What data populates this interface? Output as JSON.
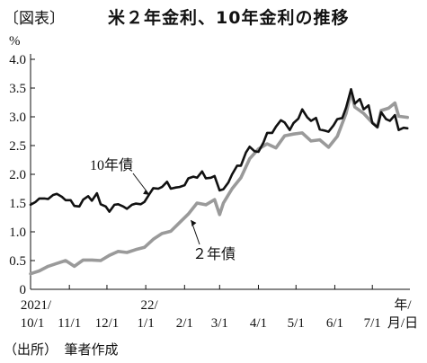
{
  "header": {
    "figure_label": "〔図表〕",
    "title": "米２年金利、10年金利の推移"
  },
  "footer": {
    "source": "（出所）　筆者作成"
  },
  "chart_data": {
    "type": "line",
    "title": "米２年金利、10年金利の推移",
    "ylabel": "%",
    "xlabel": "",
    "ylim": [
      0,
      4.0
    ],
    "yticks": [
      0,
      0.5,
      1.0,
      1.5,
      2.0,
      2.5,
      3.0,
      3.5,
      4.0
    ],
    "ytick_labels": [
      "0",
      "0.5",
      "1.0",
      "1.5",
      "2.0",
      "2.5",
      "3.0",
      "3.5",
      "4.0"
    ],
    "xlim": [
      "2021-10-01",
      "2022-07-31"
    ],
    "xticks": [
      {
        "date": "2021-10-01",
        "label": "10/1",
        "year_label": "2021/"
      },
      {
        "date": "2021-11-01",
        "label": "11/1",
        "year_label": ""
      },
      {
        "date": "2021-12-01",
        "label": "12/1",
        "year_label": ""
      },
      {
        "date": "2022-01-01",
        "label": "1/1",
        "year_label": "22/"
      },
      {
        "date": "2022-02-01",
        "label": "2/1",
        "year_label": ""
      },
      {
        "date": "2022-03-01",
        "label": "3/1",
        "year_label": ""
      },
      {
        "date": "2022-04-01",
        "label": "4/1",
        "year_label": ""
      },
      {
        "date": "2022-05-01",
        "label": "5/1",
        "year_label": ""
      },
      {
        "date": "2022-06-01",
        "label": "6/1",
        "year_label": ""
      },
      {
        "date": "2022-07-01",
        "label": "7/1",
        "year_label": ""
      }
    ],
    "x_unit_top": "年/",
    "x_unit_bottom": "月/日",
    "grid": false,
    "legend": "inline labels with arrows",
    "series": [
      {
        "name": "10年債",
        "color": "#111111",
        "points": [
          [
            "2021-10-01",
            1.47
          ],
          [
            "2021-10-05",
            1.52
          ],
          [
            "2021-10-08",
            1.58
          ],
          [
            "2021-10-12",
            1.58
          ],
          [
            "2021-10-15",
            1.57
          ],
          [
            "2021-10-19",
            1.64
          ],
          [
            "2021-10-22",
            1.66
          ],
          [
            "2021-10-26",
            1.61
          ],
          [
            "2021-10-29",
            1.55
          ],
          [
            "2021-11-02",
            1.55
          ],
          [
            "2021-11-05",
            1.45
          ],
          [
            "2021-11-09",
            1.44
          ],
          [
            "2021-11-12",
            1.56
          ],
          [
            "2021-11-16",
            1.62
          ],
          [
            "2021-11-19",
            1.54
          ],
          [
            "2021-11-23",
            1.67
          ],
          [
            "2021-11-26",
            1.48
          ],
          [
            "2021-11-30",
            1.44
          ],
          [
            "2021-12-03",
            1.35
          ],
          [
            "2021-12-07",
            1.47
          ],
          [
            "2021-12-10",
            1.48
          ],
          [
            "2021-12-14",
            1.44
          ],
          [
            "2021-12-17",
            1.4
          ],
          [
            "2021-12-21",
            1.47
          ],
          [
            "2021-12-24",
            1.49
          ],
          [
            "2021-12-28",
            1.48
          ],
          [
            "2021-12-31",
            1.52
          ],
          [
            "2022-01-04",
            1.66
          ],
          [
            "2022-01-07",
            1.76
          ],
          [
            "2022-01-11",
            1.75
          ],
          [
            "2022-01-14",
            1.78
          ],
          [
            "2022-01-18",
            1.87
          ],
          [
            "2022-01-21",
            1.75
          ],
          [
            "2022-01-25",
            1.77
          ],
          [
            "2022-01-28",
            1.78
          ],
          [
            "2022-02-01",
            1.81
          ],
          [
            "2022-02-04",
            1.93
          ],
          [
            "2022-02-08",
            1.96
          ],
          [
            "2022-02-11",
            1.94
          ],
          [
            "2022-02-15",
            2.05
          ],
          [
            "2022-02-18",
            1.93
          ],
          [
            "2022-02-22",
            1.94
          ],
          [
            "2022-02-25",
            1.97
          ],
          [
            "2022-03-01",
            1.72
          ],
          [
            "2022-03-04",
            1.74
          ],
          [
            "2022-03-08",
            1.86
          ],
          [
            "2022-03-11",
            2.0
          ],
          [
            "2022-03-15",
            2.15
          ],
          [
            "2022-03-18",
            2.15
          ],
          [
            "2022-03-22",
            2.38
          ],
          [
            "2022-03-25",
            2.48
          ],
          [
            "2022-03-29",
            2.4
          ],
          [
            "2022-04-01",
            2.39
          ],
          [
            "2022-04-05",
            2.55
          ],
          [
            "2022-04-08",
            2.72
          ],
          [
            "2022-04-12",
            2.72
          ],
          [
            "2022-04-15",
            2.83
          ],
          [
            "2022-04-19",
            2.94
          ],
          [
            "2022-04-22",
            2.9
          ],
          [
            "2022-04-26",
            2.77
          ],
          [
            "2022-04-29",
            2.89
          ],
          [
            "2022-05-03",
            2.97
          ],
          [
            "2022-05-06",
            3.13
          ],
          [
            "2022-05-10",
            2.99
          ],
          [
            "2022-05-13",
            2.93
          ],
          [
            "2022-05-17",
            2.98
          ],
          [
            "2022-05-20",
            2.78
          ],
          [
            "2022-05-24",
            2.76
          ],
          [
            "2022-05-27",
            2.74
          ],
          [
            "2022-05-31",
            2.85
          ],
          [
            "2022-06-03",
            2.96
          ],
          [
            "2022-06-07",
            2.98
          ],
          [
            "2022-06-10",
            3.16
          ],
          [
            "2022-06-14",
            3.48
          ],
          [
            "2022-06-17",
            3.23
          ],
          [
            "2022-06-21",
            3.31
          ],
          [
            "2022-06-24",
            3.13
          ],
          [
            "2022-06-28",
            3.2
          ],
          [
            "2022-07-01",
            2.89
          ],
          [
            "2022-07-05",
            2.82
          ],
          [
            "2022-07-08",
            3.08
          ],
          [
            "2022-07-12",
            2.96
          ],
          [
            "2022-07-15",
            2.93
          ],
          [
            "2022-07-19",
            3.03
          ],
          [
            "2022-07-22",
            2.77
          ],
          [
            "2022-07-26",
            2.81
          ],
          [
            "2022-07-29",
            2.8
          ]
        ]
      },
      {
        "name": "２年債",
        "color": "#9a9a9a",
        "points": [
          [
            "2021-10-01",
            0.27
          ],
          [
            "2021-10-08",
            0.32
          ],
          [
            "2021-10-15",
            0.4
          ],
          [
            "2021-10-22",
            0.45
          ],
          [
            "2021-10-29",
            0.5
          ],
          [
            "2021-11-05",
            0.4
          ],
          [
            "2021-11-12",
            0.51
          ],
          [
            "2021-11-19",
            0.51
          ],
          [
            "2021-11-26",
            0.5
          ],
          [
            "2021-12-03",
            0.59
          ],
          [
            "2021-12-10",
            0.66
          ],
          [
            "2021-12-17",
            0.64
          ],
          [
            "2021-12-24",
            0.69
          ],
          [
            "2021-12-31",
            0.73
          ],
          [
            "2022-01-07",
            0.87
          ],
          [
            "2022-01-14",
            0.97
          ],
          [
            "2022-01-21",
            1.01
          ],
          [
            "2022-01-28",
            1.16
          ],
          [
            "2022-02-04",
            1.31
          ],
          [
            "2022-02-11",
            1.5
          ],
          [
            "2022-02-18",
            1.47
          ],
          [
            "2022-02-25",
            1.56
          ],
          [
            "2022-03-01",
            1.3
          ],
          [
            "2022-03-04",
            1.5
          ],
          [
            "2022-03-11",
            1.75
          ],
          [
            "2022-03-18",
            1.94
          ],
          [
            "2022-03-25",
            2.27
          ],
          [
            "2022-04-01",
            2.44
          ],
          [
            "2022-04-08",
            2.53
          ],
          [
            "2022-04-15",
            2.46
          ],
          [
            "2022-04-22",
            2.67
          ],
          [
            "2022-04-29",
            2.7
          ],
          [
            "2022-05-06",
            2.72
          ],
          [
            "2022-05-13",
            2.58
          ],
          [
            "2022-05-20",
            2.6
          ],
          [
            "2022-05-27",
            2.47
          ],
          [
            "2022-06-03",
            2.66
          ],
          [
            "2022-06-10",
            3.06
          ],
          [
            "2022-06-14",
            3.43
          ],
          [
            "2022-06-17",
            3.17
          ],
          [
            "2022-06-24",
            3.06
          ],
          [
            "2022-06-30",
            2.92
          ],
          [
            "2022-07-05",
            2.82
          ],
          [
            "2022-07-08",
            3.11
          ],
          [
            "2022-07-14",
            3.15
          ],
          [
            "2022-07-19",
            3.24
          ],
          [
            "2022-07-22",
            3.01
          ],
          [
            "2022-07-29",
            2.99
          ]
        ]
      }
    ],
    "annotations": [
      {
        "text": "10年債",
        "series": "10年債"
      },
      {
        "text": "２年債",
        "series": "２年債"
      }
    ]
  }
}
